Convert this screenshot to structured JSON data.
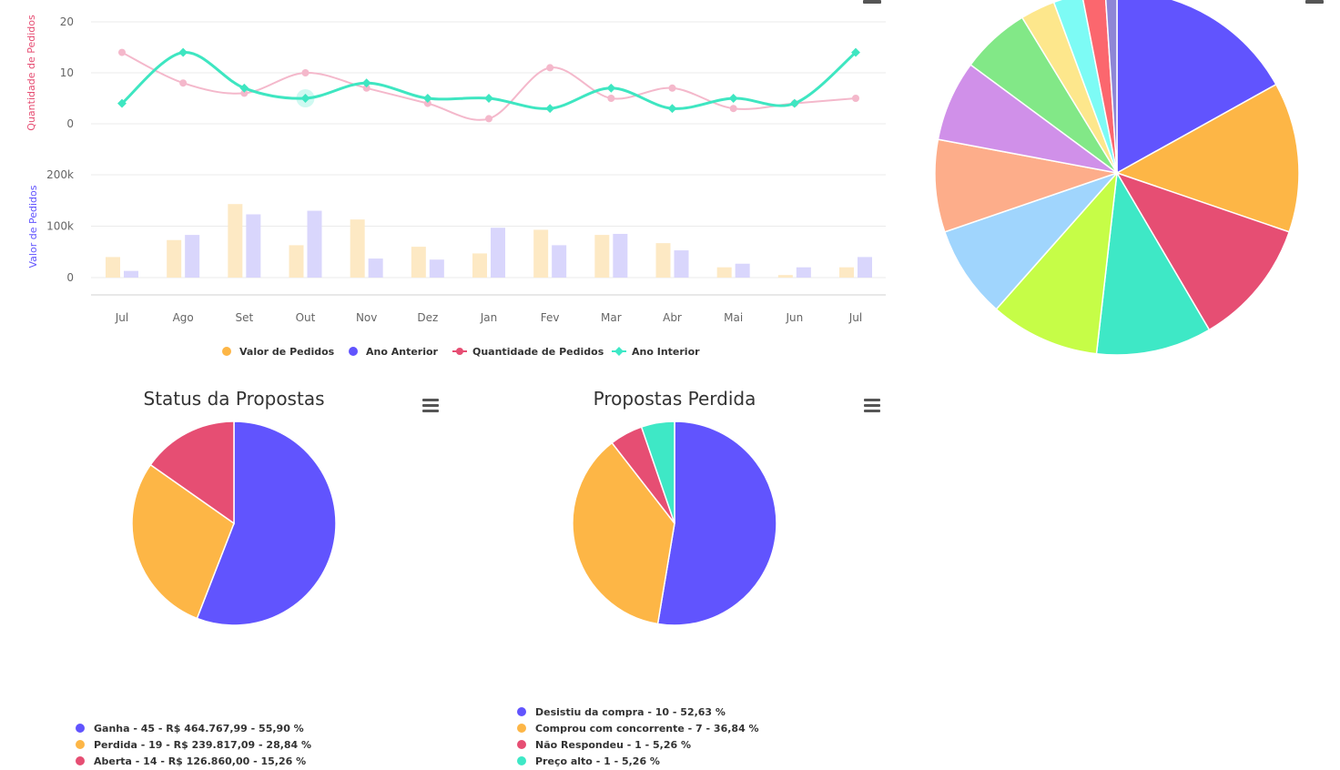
{
  "chart_data": [
    {
      "type": "line",
      "panel": "quantity",
      "ylabel": "Quantidade de Pedidos",
      "ylim": [
        0,
        20
      ],
      "yticks": [
        "0",
        "10",
        "20"
      ],
      "categories": [
        "Jul",
        "Ago",
        "Set",
        "Out",
        "Nov",
        "Dez",
        "Jan",
        "Fev",
        "Mar",
        "Abr",
        "Mai",
        "Jun",
        "Jul"
      ],
      "series": [
        {
          "name": "Quantidade de Pedidos",
          "color": "#f4b8cb",
          "values": [
            14,
            8,
            6,
            10,
            7,
            4,
            1,
            11,
            5,
            7,
            3,
            4,
            5
          ]
        },
        {
          "name": "Ano Interior",
          "color": "#3ee6c1",
          "values": [
            4,
            14,
            7,
            5,
            8,
            5,
            5,
            3,
            7,
            3,
            5,
            4,
            14
          ]
        }
      ]
    },
    {
      "type": "bar",
      "panel": "value",
      "ylabel": "Valor de Pedidos",
      "ylim": [
        0,
        200000
      ],
      "yticks": [
        "0",
        "100k",
        "200k"
      ],
      "categories": [
        "Jul",
        "Ago",
        "Set",
        "Out",
        "Nov",
        "Dez",
        "Jan",
        "Fev",
        "Mar",
        "Abr",
        "Mai",
        "Jun",
        "Jul"
      ],
      "series": [
        {
          "name": "Valor de Pedidos",
          "color": "#fde9c4",
          "values": [
            40000,
            73000,
            143000,
            63000,
            113000,
            60000,
            47000,
            93000,
            83000,
            67000,
            20000,
            5000,
            20000
          ]
        },
        {
          "name": "Ano Anterior",
          "color": "#d9d6fc",
          "values": [
            13000,
            83000,
            123000,
            130000,
            37000,
            35000,
            97000,
            63000,
            85000,
            53000,
            27000,
            20000,
            40000
          ]
        }
      ]
    },
    {
      "type": "pie",
      "panel": "big",
      "values": [
        16.5,
        13.0,
        11.0,
        10.0,
        9.5,
        8.0,
        8.0,
        7.0,
        6.0,
        3.0,
        2.5,
        2.0,
        1.0
      ],
      "colors": [
        "#6154fe",
        "#fdb646",
        "#e64e73",
        "#3ee8c6",
        "#c6fd47",
        "#a0d5fd",
        "#fdad8a",
        "#d090e9",
        "#82e887",
        "#fde78c",
        "#7dfbf5",
        "#fb676e",
        "#8e86d6"
      ]
    },
    {
      "type": "pie",
      "panel": "status",
      "title": "Status da Propostas",
      "values": [
        55.9,
        28.84,
        15.26
      ],
      "colors": [
        "#6154fe",
        "#fdb646",
        "#e64e73"
      ],
      "legend": [
        "Ganha - 45 - R$ 464.767,99 - 55,90 %",
        "Perdida - 19 - R$ 239.817,09 - 28,84 %",
        "Aberta - 14 - R$ 126.860,00 - 15,26 %"
      ]
    },
    {
      "type": "pie",
      "panel": "lost",
      "title": "Propostas Perdida",
      "values": [
        52.63,
        36.84,
        5.26,
        5.26
      ],
      "colors": [
        "#6154fe",
        "#fdb646",
        "#e64e73",
        "#3ee8c6"
      ],
      "legend": [
        "Desistiu da compra - 10 - 52,63 %",
        "Comprou com concorrente - 7 - 36,84 %",
        "Não Respondeu - 1 - 5,26 %",
        "Preço alto - 1 - 5,26 %"
      ]
    }
  ],
  "legend_main": [
    {
      "label": "Valor de Pedidos",
      "color": "#fdb646",
      "marker": "circle"
    },
    {
      "label": "Ano Anterior",
      "color": "#6154fe",
      "marker": "circle"
    },
    {
      "label": "Quantidade de Pedidos",
      "color": "#e64e73",
      "marker": "line-circle"
    },
    {
      "label": "Ano Interior",
      "color": "#3ee8c6",
      "marker": "line-diamond"
    }
  ],
  "icons": {
    "menu": "hamburger-menu-icon"
  }
}
